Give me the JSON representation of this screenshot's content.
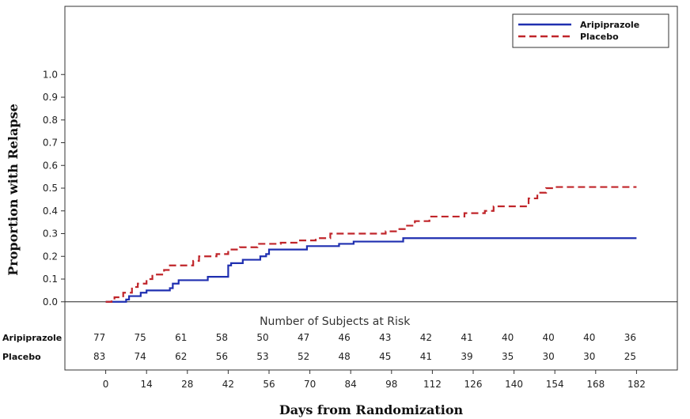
{
  "chart_data": {
    "type": "line",
    "subtype": "step",
    "xlabel": "Days from Randomization",
    "ylabel": "Proportion with Relapse",
    "xlim": [
      -14,
      196
    ],
    "ylim": [
      -0.3,
      1.3
    ],
    "xticks": [
      0,
      14,
      28,
      42,
      56,
      70,
      84,
      98,
      112,
      126,
      140,
      154,
      168,
      182
    ],
    "yticks": [
      "0.0",
      "0.1",
      "0.2",
      "0.3",
      "0.4",
      "0.5",
      "0.6",
      "0.7",
      "0.8",
      "0.9",
      "1.0"
    ],
    "legend_position": "top-right",
    "series": [
      {
        "name": "Aripiprazole",
        "color": "#1f2fb0",
        "style": "solid",
        "points": [
          [
            0,
            0.0
          ],
          [
            6,
            0.0
          ],
          [
            7,
            0.01
          ],
          [
            8,
            0.025
          ],
          [
            12,
            0.04
          ],
          [
            14,
            0.05
          ],
          [
            22,
            0.06
          ],
          [
            23,
            0.08
          ],
          [
            25,
            0.095
          ],
          [
            35,
            0.11
          ],
          [
            42,
            0.16
          ],
          [
            43,
            0.17
          ],
          [
            47,
            0.185
          ],
          [
            53,
            0.2
          ],
          [
            55,
            0.21
          ],
          [
            56,
            0.23
          ],
          [
            69,
            0.245
          ],
          [
            80,
            0.255
          ],
          [
            85,
            0.265
          ],
          [
            102,
            0.28
          ],
          [
            182,
            0.28
          ]
        ]
      },
      {
        "name": "Placebo",
        "color": "#c0252a",
        "style": "dashed",
        "points": [
          [
            0,
            0.0
          ],
          [
            2,
            0.01
          ],
          [
            3,
            0.02
          ],
          [
            6,
            0.04
          ],
          [
            9,
            0.065
          ],
          [
            11,
            0.08
          ],
          [
            14,
            0.1
          ],
          [
            16,
            0.12
          ],
          [
            20,
            0.14
          ],
          [
            22,
            0.16
          ],
          [
            30,
            0.18
          ],
          [
            32,
            0.2
          ],
          [
            38,
            0.21
          ],
          [
            42,
            0.23
          ],
          [
            46,
            0.24
          ],
          [
            52,
            0.255
          ],
          [
            60,
            0.26
          ],
          [
            66,
            0.27
          ],
          [
            72,
            0.28
          ],
          [
            77,
            0.3
          ],
          [
            96,
            0.31
          ],
          [
            100,
            0.32
          ],
          [
            103,
            0.335
          ],
          [
            106,
            0.355
          ],
          [
            111,
            0.375
          ],
          [
            120,
            0.375
          ],
          [
            123,
            0.39
          ],
          [
            130,
            0.4
          ],
          [
            133,
            0.42
          ],
          [
            141,
            0.42
          ],
          [
            145,
            0.455
          ],
          [
            148,
            0.48
          ],
          [
            151,
            0.5
          ],
          [
            154,
            0.505
          ],
          [
            182,
            0.505
          ]
        ]
      }
    ],
    "risk_table": {
      "title": "Number of Subjects at Risk",
      "timepoints": [
        0,
        14,
        28,
        42,
        56,
        70,
        84,
        98,
        112,
        126,
        140,
        154,
        168,
        182
      ],
      "rows": [
        {
          "name": "Aripiprazole",
          "counts": [
            "77",
            "75",
            "61",
            "58",
            "50",
            "47",
            "46",
            "43",
            "42",
            "41",
            "40",
            "40",
            "40",
            "36"
          ]
        },
        {
          "name": "Placebo",
          "counts": [
            "83",
            "74",
            "62",
            "56",
            "53",
            "52",
            "48",
            "45",
            "41",
            "39",
            "35",
            "30",
            "30",
            "25"
          ]
        }
      ]
    }
  }
}
